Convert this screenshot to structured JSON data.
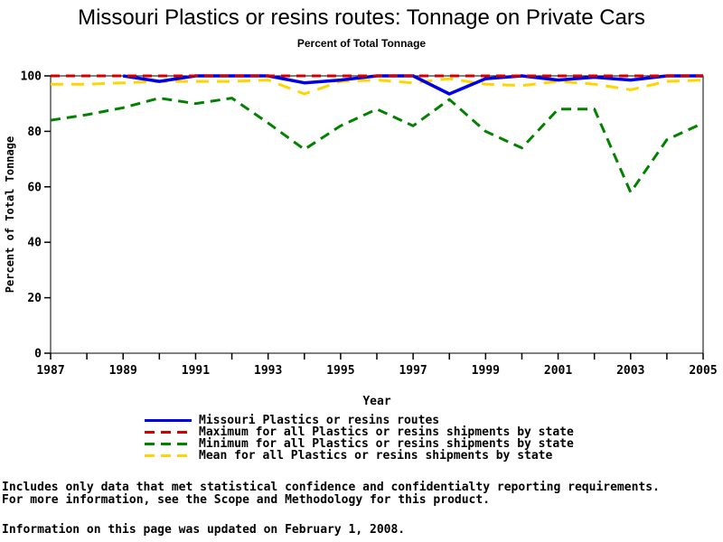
{
  "title": "Missouri Plastics or resins routes: Tonnage on Private Cars",
  "subtitle": "Percent of Total Tonnage",
  "chart_data": {
    "type": "line",
    "x": [
      1987,
      1988,
      1989,
      1990,
      1991,
      1992,
      1993,
      1994,
      1995,
      1996,
      1997,
      1998,
      1999,
      2000,
      2001,
      2002,
      2003,
      2004,
      2005
    ],
    "xtick_label_years": [
      1987,
      1989,
      1991,
      1993,
      1995,
      1997,
      1999,
      2001,
      2003,
      2005
    ],
    "xlabel": "Year",
    "ylabel": "Percent of Total Tonnage",
    "ylim": [
      0,
      100
    ],
    "yticks": [
      0,
      20,
      40,
      60,
      80,
      100
    ],
    "grid": "off",
    "frame": "box",
    "legend_position": "bottom",
    "series": [
      {
        "name": "Missouri Plastics or resins routes",
        "color": "#0000e6",
        "style": "solid",
        "width": 3.5,
        "values": [
          null,
          null,
          100,
          98,
          100,
          100,
          100,
          97.5,
          98.5,
          100,
          100,
          93.5,
          99,
          100,
          98.5,
          99.5,
          98.5,
          100,
          100
        ]
      },
      {
        "name": "Maximum for all Plastics or resins shipments by state",
        "color": "#d40000",
        "style": "dashed",
        "width": 3,
        "values": [
          100,
          100,
          100,
          100,
          100,
          100,
          100,
          100,
          100,
          100,
          100,
          100,
          100,
          100,
          100,
          100,
          100,
          100,
          100
        ]
      },
      {
        "name": "Minimum for all Plastics or resins shipments by state",
        "color": "#008200",
        "style": "dashed",
        "width": 3,
        "values": [
          84,
          86,
          88.5,
          92,
          90,
          92,
          83,
          73.5,
          82,
          88,
          82,
          91.5,
          80,
          74,
          88,
          88,
          58,
          77,
          83
        ]
      },
      {
        "name": "Mean for all Plastics or resins shipments by state",
        "color": "#ffd400",
        "style": "dashed",
        "width": 3,
        "values": [
          97,
          97,
          97.5,
          98,
          98,
          98,
          98.5,
          93.5,
          98,
          98.5,
          97.5,
          99,
          97,
          96.5,
          98,
          97,
          95,
          98,
          98.5
        ]
      }
    ]
  },
  "legend": {
    "items": [
      {
        "label": "Missouri Plastics or resins routes",
        "color": "#0000e6",
        "style": "solid"
      },
      {
        "label": "Maximum for all Plastics or resins shipments by state",
        "color": "#d40000",
        "style": "dashed"
      },
      {
        "label": "Minimum for all Plastics or resins shipments by state",
        "color": "#008200",
        "style": "dashed"
      },
      {
        "label": "Mean for all Plastics or resins shipments by state",
        "color": "#ffd400",
        "style": "dashed"
      }
    ]
  },
  "footnotes": {
    "line1": "Includes only data that met statistical confidence and confidentialty reporting requirements.",
    "line2": "For more information, see the Scope and Methodology for this product.",
    "line3": "Information on this page was updated on February 1, 2008."
  }
}
